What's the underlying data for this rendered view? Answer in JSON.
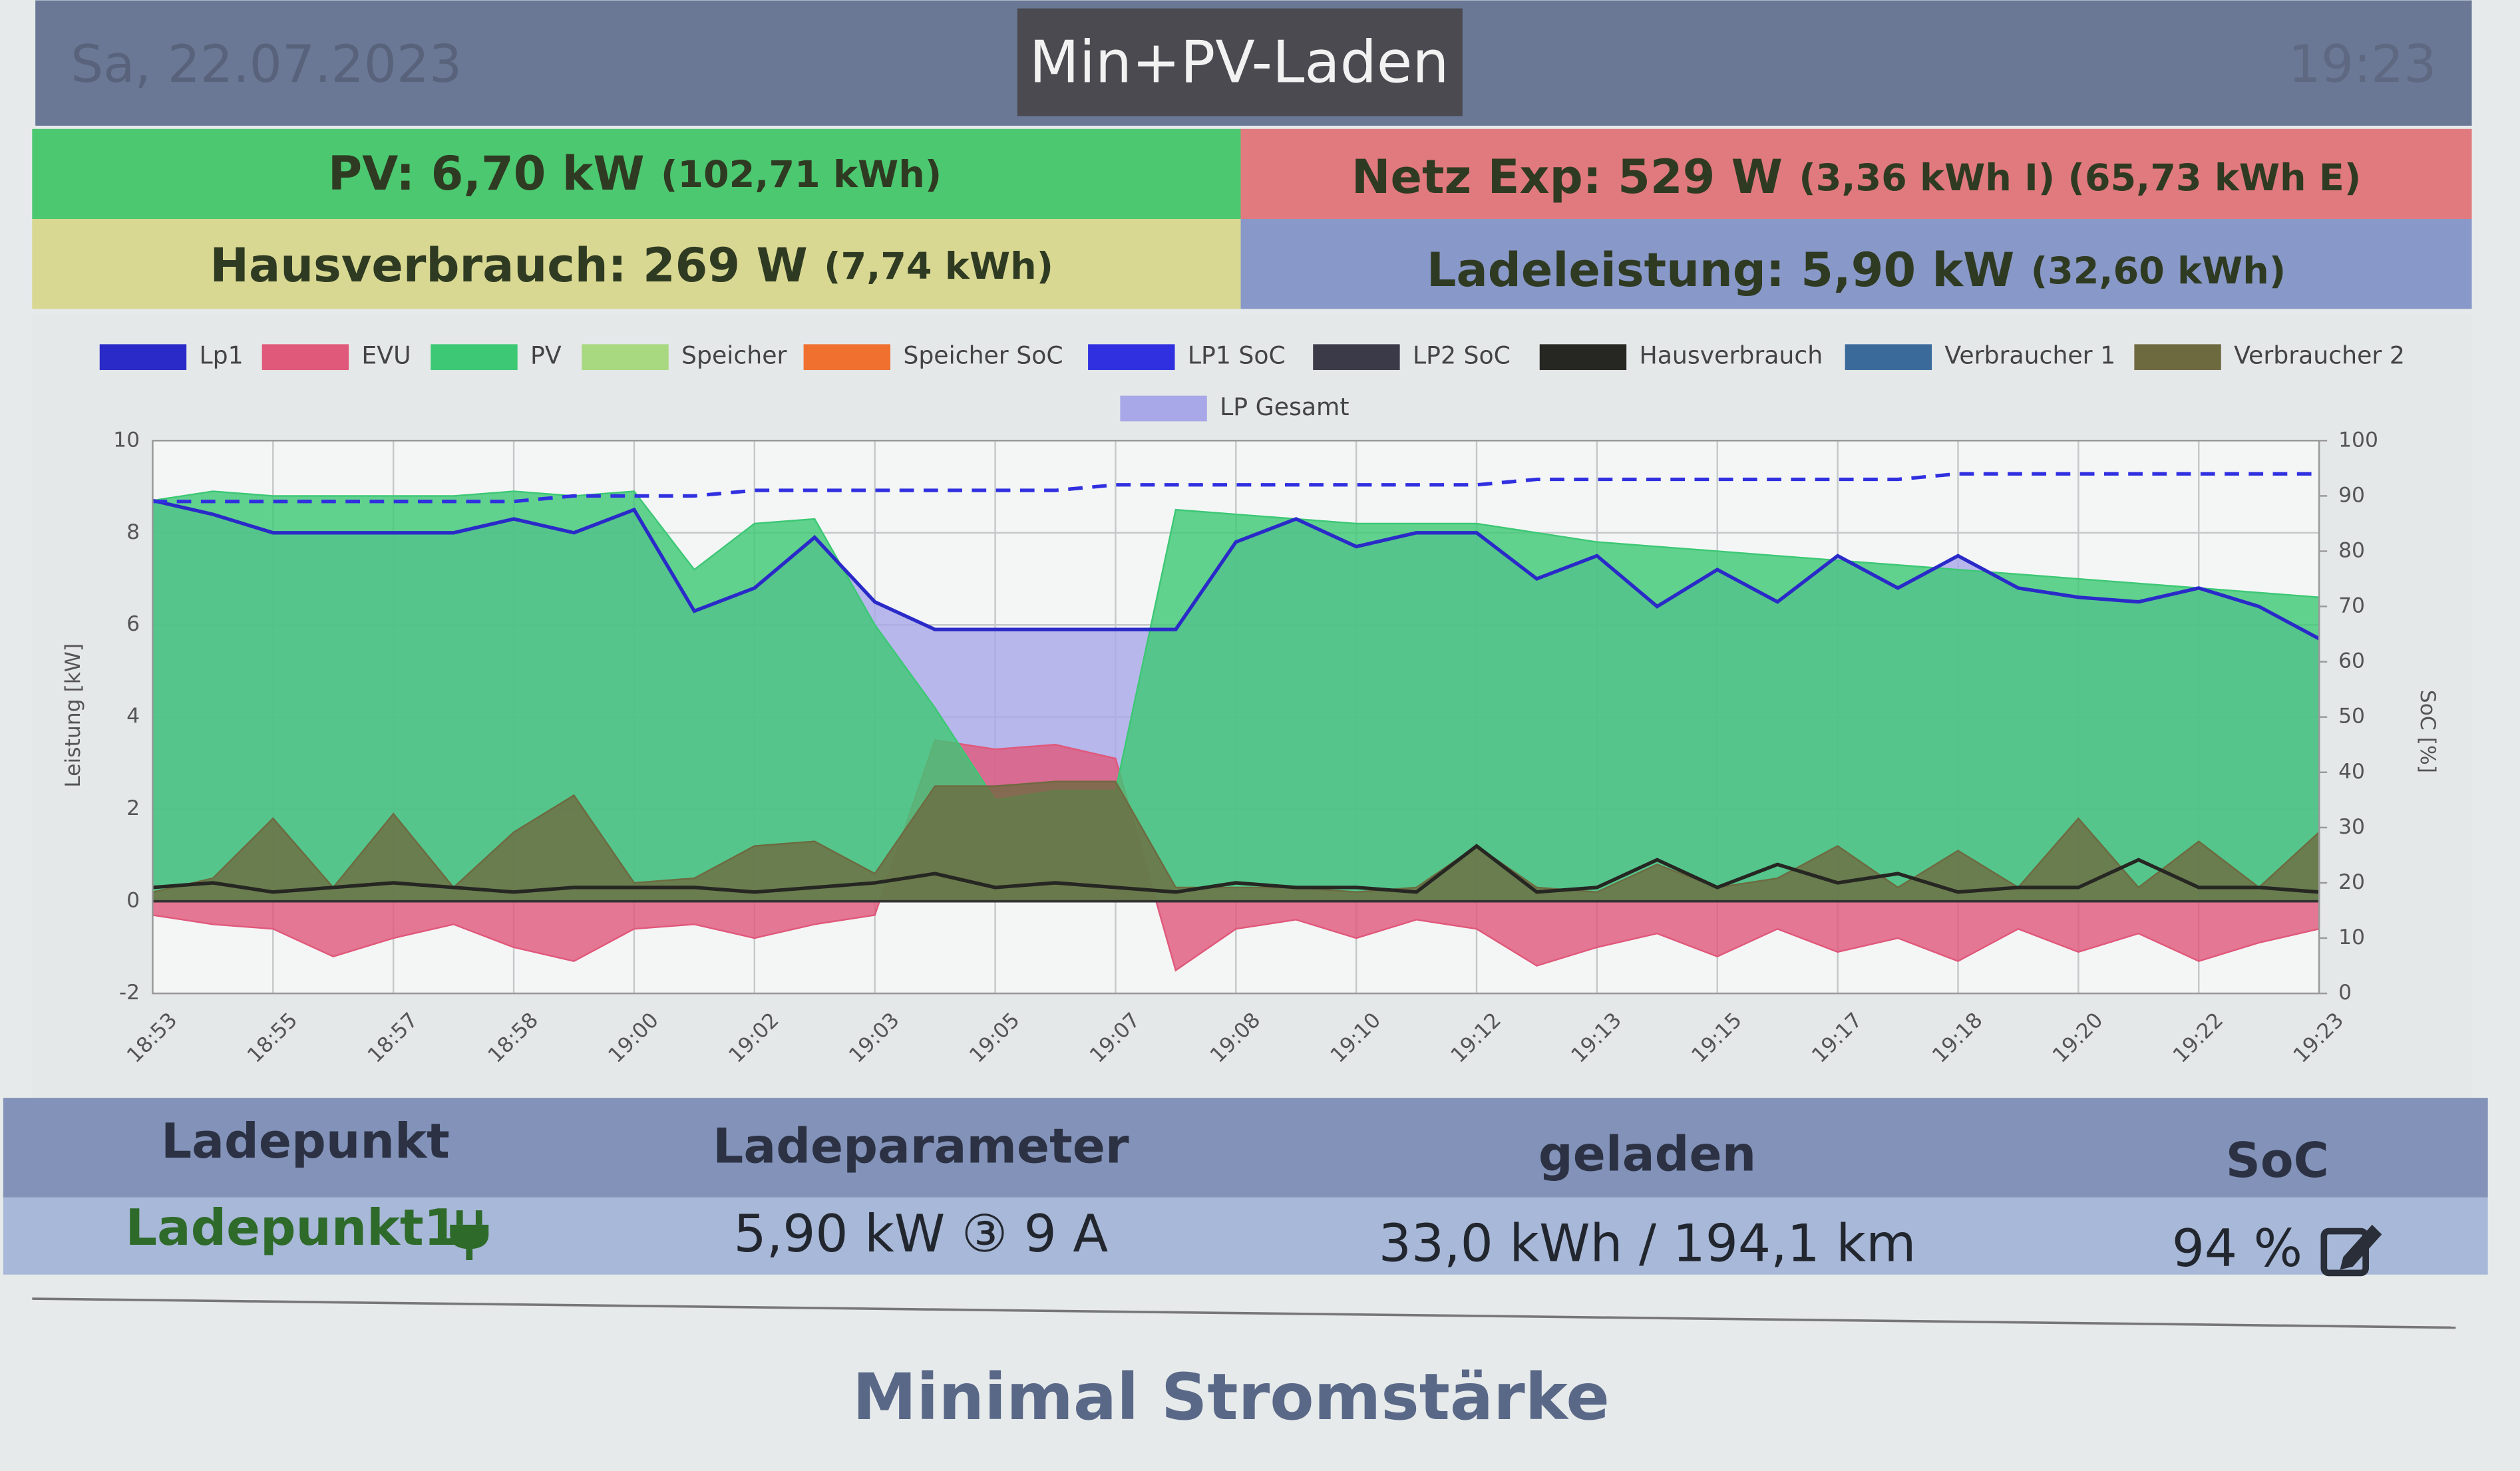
{
  "header": {
    "date": "Sa, 22.07.2023",
    "mode": "Min+PV-Laden",
    "time": "19:23"
  },
  "status": {
    "pv": {
      "label": "PV: 6,70 kW",
      "detail": "(102,71 kWh)"
    },
    "grid": {
      "label": "Netz Exp: 529 W",
      "detail": "(3,36 kWh I) (65,73 kWh E)"
    },
    "house": {
      "label": "Hausverbrauch: 269 W",
      "detail": "(7,74 kWh)"
    },
    "charging": {
      "label": "Ladeleistung: 5,90 kW",
      "detail": "(32,60 kWh)"
    }
  },
  "chart_data": {
    "type": "line",
    "y_label": "Leistung [kW]",
    "y2_label": "SoC [%]",
    "categories": [
      "18:53",
      null,
      "18:55",
      null,
      "18:57",
      null,
      "18:58",
      null,
      "19:00",
      null,
      "19:02",
      null,
      "19:03",
      null,
      "19:05",
      null,
      "19:07",
      null,
      "19:08",
      null,
      "19:10",
      null,
      "19:12",
      null,
      "19:13",
      null,
      "19:15",
      null,
      "19:17",
      null,
      "19:18",
      null,
      "19:20",
      null,
      "19:22",
      null,
      "19:23"
    ],
    "ylim": [
      -2,
      10
    ],
    "yticks": [
      -2,
      0,
      2,
      4,
      6,
      8,
      10
    ],
    "y2lim": [
      0,
      100
    ],
    "y2ticks": [
      0,
      10,
      20,
      30,
      40,
      50,
      60,
      70,
      80,
      90,
      100
    ],
    "grid": true,
    "legend": "top",
    "series": [
      {
        "name": "Lp1",
        "color": "#2a2ac8",
        "style": "line",
        "values": [
          8.7,
          8.4,
          8.0,
          8.0,
          8.0,
          8.0,
          8.3,
          8.0,
          8.5,
          6.3,
          6.8,
          7.9,
          6.5,
          5.9,
          5.9,
          5.9,
          5.9,
          5.9,
          7.8,
          8.3,
          7.7,
          8.0,
          8.0,
          7.0,
          7.5,
          6.4,
          7.2,
          6.5,
          7.5,
          6.8,
          7.5,
          6.8,
          6.6,
          6.5,
          6.8,
          6.4,
          5.7
        ]
      },
      {
        "name": "EVU",
        "color": "#e0587a",
        "style": "area",
        "values": [
          -0.3,
          -0.5,
          -0.6,
          -1.2,
          -0.8,
          -0.5,
          -1.0,
          -1.3,
          -0.6,
          -0.5,
          -0.8,
          -0.5,
          -0.3,
          3.5,
          3.3,
          3.4,
          3.1,
          -1.5,
          -0.6,
          -0.4,
          -0.8,
          -0.4,
          -0.6,
          -1.4,
          -1.0,
          -0.7,
          -1.2,
          -0.6,
          -1.1,
          -0.8,
          -1.3,
          -0.6,
          -1.1,
          -0.7,
          -1.3,
          -0.9,
          -0.6
        ]
      },
      {
        "name": "PV",
        "color": "#3cc874",
        "style": "area",
        "values": [
          8.7,
          8.9,
          8.8,
          8.8,
          8.8,
          8.8,
          8.9,
          8.8,
          8.9,
          7.2,
          8.2,
          8.3,
          6.0,
          4.2,
          2.2,
          2.4,
          2.4,
          8.5,
          8.4,
          8.3,
          8.2,
          8.2,
          8.2,
          8.0,
          7.8,
          7.7,
          7.6,
          7.5,
          7.4,
          7.3,
          7.2,
          7.1,
          7.0,
          6.9,
          6.8,
          6.7,
          6.6
        ]
      },
      {
        "name": "Speicher",
        "color": "#a8d880",
        "style": "area",
        "values": [
          null,
          null,
          null,
          null,
          null,
          null,
          null,
          null,
          null,
          null,
          null,
          null,
          null,
          null,
          null,
          null,
          null,
          null,
          null,
          null,
          null,
          null,
          null,
          null,
          null,
          null,
          null,
          null,
          null,
          null,
          null,
          null,
          null,
          null,
          null,
          null,
          null
        ]
      },
      {
        "name": "Speicher SoC",
        "color": "#f07030",
        "style": "line",
        "axis": "y2",
        "values": [
          null,
          null,
          null,
          null,
          null,
          null,
          null,
          null,
          null,
          null,
          null,
          null,
          null,
          null,
          null,
          null,
          null,
          null,
          null,
          null,
          null,
          null,
          null,
          null,
          null,
          null,
          null,
          null,
          null,
          null,
          null,
          null,
          null,
          null,
          null,
          null,
          null
        ]
      },
      {
        "name": "LP1 SoC",
        "color": "#3030e0",
        "style": "dashed",
        "axis": "y2",
        "values": [
          89,
          89,
          89,
          89,
          89,
          89,
          89,
          90,
          90,
          90,
          91,
          91,
          91,
          91,
          91,
          91,
          92,
          92,
          92,
          92,
          92,
          92,
          92,
          93,
          93,
          93,
          93,
          93,
          93,
          93,
          94,
          94,
          94,
          94,
          94,
          94,
          94
        ]
      },
      {
        "name": "LP2 SoC",
        "color": "#3a3a48",
        "style": "line",
        "axis": "y2",
        "values": [
          null,
          null,
          null,
          null,
          null,
          null,
          null,
          null,
          null,
          null,
          null,
          null,
          null,
          null,
          null,
          null,
          null,
          null,
          null,
          null,
          null,
          null,
          null,
          null,
          null,
          null,
          null,
          null,
          null,
          null,
          null,
          null,
          null,
          null,
          null,
          null,
          null
        ]
      },
      {
        "name": "Hausverbrauch",
        "color": "#262622",
        "style": "line",
        "values": [
          0.3,
          0.4,
          0.2,
          0.3,
          0.4,
          0.3,
          0.2,
          0.3,
          0.3,
          0.3,
          0.2,
          0.3,
          0.4,
          0.6,
          0.3,
          0.4,
          0.3,
          0.2,
          0.4,
          0.3,
          0.3,
          0.2,
          1.2,
          0.2,
          0.3,
          0.9,
          0.3,
          0.8,
          0.4,
          0.6,
          0.2,
          0.3,
          0.3,
          0.9,
          0.3,
          0.3,
          0.2
        ]
      },
      {
        "name": "Verbraucher 1",
        "color": "#3a6a9a",
        "style": "area",
        "values": [
          null,
          null,
          null,
          null,
          null,
          null,
          null,
          null,
          null,
          null,
          null,
          null,
          null,
          null,
          null,
          null,
          null,
          null,
          null,
          null,
          null,
          null,
          null,
          null,
          null,
          null,
          null,
          null,
          null,
          null,
          null,
          null,
          null,
          null,
          null,
          null,
          null
        ]
      },
      {
        "name": "Verbraucher 2",
        "color": "#6e6a40",
        "style": "area",
        "values": [
          0.2,
          0.5,
          1.8,
          0.3,
          1.9,
          0.3,
          1.5,
          2.3,
          0.4,
          0.5,
          1.2,
          1.3,
          0.6,
          2.5,
          2.5,
          2.6,
          2.6,
          0.3,
          0.3,
          0.3,
          0.2,
          0.3,
          1.2,
          0.3,
          0.2,
          0.8,
          0.3,
          0.5,
          1.2,
          0.3,
          1.1,
          0.3,
          1.8,
          0.3,
          1.3,
          0.3,
          1.5
        ]
      },
      {
        "name": "LP Gesamt",
        "color": "#a8a8e8",
        "style": "area",
        "values": [
          8.7,
          8.4,
          8.0,
          8.0,
          8.0,
          8.0,
          8.3,
          8.0,
          8.5,
          6.3,
          6.8,
          7.9,
          6.5,
          5.9,
          5.9,
          5.9,
          5.9,
          5.9,
          7.8,
          8.3,
          7.7,
          8.0,
          8.0,
          7.0,
          7.5,
          6.4,
          7.2,
          6.5,
          7.5,
          6.8,
          7.5,
          6.8,
          6.6,
          6.5,
          6.8,
          6.4,
          5.7
        ]
      }
    ]
  },
  "table": {
    "headers": [
      "Ladepunkt",
      "Ladeparameter",
      "geladen",
      "SoC"
    ],
    "rows": [
      [
        "Ladepunkt1",
        "5,90 kW ③ 9 A",
        "33,0 kWh / 194,1 km",
        "94 %"
      ]
    ]
  },
  "footer": {
    "section_title": "Minimal Stromstärke"
  }
}
